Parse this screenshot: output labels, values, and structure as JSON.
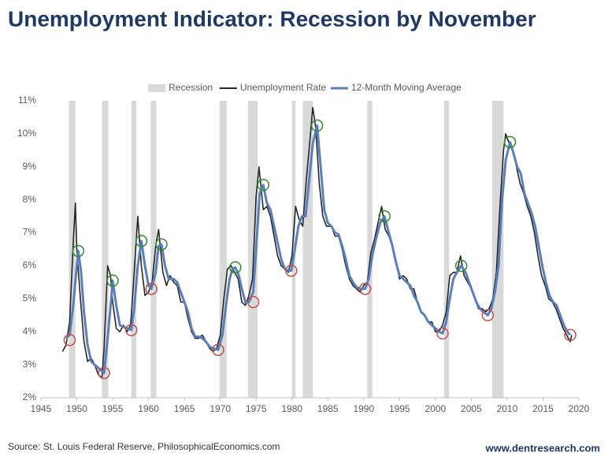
{
  "chart_data": {
    "type": "line",
    "title": "Unemployment Indicator: Recession by November",
    "source": "Source: St. Louis Federal Reserve, PhilosophicalEconomics.com",
    "credit": "www.dentresearch.com",
    "xlim": [
      1945,
      2020
    ],
    "xticks": [
      1945,
      1950,
      1955,
      1960,
      1965,
      1970,
      1975,
      1980,
      1985,
      1990,
      1995,
      2000,
      2005,
      2010,
      2015,
      2020
    ],
    "ylim": [
      2,
      11
    ],
    "yticks": [
      {
        "value": 2,
        "label": "2%"
      },
      {
        "value": 3,
        "label": "3%"
      },
      {
        "value": 4,
        "label": "4%"
      },
      {
        "value": 5,
        "label": "5%"
      },
      {
        "value": 6,
        "label": "6%"
      },
      {
        "value": 7,
        "label": "7%"
      },
      {
        "value": 8,
        "label": "8%"
      },
      {
        "value": 9,
        "label": "9%"
      },
      {
        "value": 10,
        "label": "10%"
      },
      {
        "value": 11,
        "label": "11%"
      }
    ],
    "legend": "top",
    "series": [
      {
        "name": "Recession",
        "color": "#d9d9d9",
        "periods": [
          [
            1948.9,
            1949.8
          ],
          [
            1953.5,
            1954.4
          ],
          [
            1957.6,
            1958.3
          ],
          [
            1960.3,
            1961.1
          ],
          [
            1969.9,
            1970.9
          ],
          [
            1973.9,
            1975.2
          ],
          [
            1980.0,
            1980.5
          ],
          [
            1981.5,
            1982.9
          ],
          [
            1990.5,
            1991.2
          ],
          [
            2001.2,
            2001.9
          ],
          [
            2007.9,
            2009.5
          ]
        ]
      },
      {
        "name": "Unemployment Rate",
        "color": "#262626",
        "x": [
          1948.0,
          1948.5,
          1949.0,
          1949.5,
          1949.8,
          1950.0,
          1950.5,
          1951.0,
          1951.5,
          1952.0,
          1952.5,
          1953.0,
          1953.5,
          1953.8,
          1954.3,
          1954.7,
          1955.0,
          1955.5,
          1956.0,
          1956.5,
          1957.0,
          1957.5,
          1958.0,
          1958.5,
          1959.0,
          1959.5,
          1960.0,
          1960.5,
          1961.0,
          1961.4,
          1962.0,
          1962.5,
          1963.0,
          1963.5,
          1964.0,
          1964.5,
          1965.0,
          1965.5,
          1966.0,
          1966.5,
          1967.0,
          1967.5,
          1968.0,
          1968.5,
          1969.0,
          1969.5,
          1970.0,
          1970.5,
          1971.0,
          1971.5,
          1972.0,
          1972.5,
          1973.0,
          1973.5,
          1974.0,
          1974.5,
          1975.0,
          1975.4,
          1976.0,
          1976.5,
          1977.0,
          1977.5,
          1978.0,
          1978.5,
          1979.0,
          1979.5,
          1980.0,
          1980.5,
          1981.0,
          1981.5,
          1982.0,
          1982.5,
          1982.9,
          1983.3,
          1983.8,
          1984.3,
          1984.8,
          1985.5,
          1986.0,
          1986.5,
          1987.0,
          1987.5,
          1988.0,
          1988.5,
          1989.0,
          1989.5,
          1990.0,
          1990.5,
          1991.0,
          1991.5,
          1992.0,
          1992.5,
          1993.0,
          1993.5,
          1994.0,
          1994.5,
          1995.0,
          1995.5,
          1996.0,
          1996.5,
          1997.0,
          1997.5,
          1998.0,
          1998.5,
          1999.0,
          1999.5,
          2000.0,
          2000.5,
          2001.0,
          2001.5,
          2002.0,
          2002.5,
          2003.0,
          2003.5,
          2004.0,
          2004.5,
          2005.0,
          2005.5,
          2006.0,
          2006.5,
          2007.0,
          2007.5,
          2008.0,
          2008.5,
          2009.0,
          2009.5,
          2009.8,
          2010.3,
          2010.8,
          2011.3,
          2011.8,
          2012.3,
          2012.8,
          2013.3,
          2013.8,
          2014.3,
          2014.8,
          2015.3,
          2015.8,
          2016.3,
          2016.8,
          2017.3,
          2017.8,
          2018.3,
          2018.8,
          2019.0
        ],
        "values": [
          3.4,
          3.6,
          4.3,
          6.7,
          7.9,
          6.5,
          5.0,
          3.7,
          3.1,
          3.2,
          3.0,
          2.7,
          2.6,
          3.5,
          6.0,
          5.7,
          4.9,
          4.1,
          4.0,
          4.2,
          4.0,
          4.2,
          5.8,
          7.5,
          6.0,
          5.1,
          5.2,
          5.5,
          6.6,
          7.1,
          5.8,
          5.4,
          5.7,
          5.5,
          5.4,
          4.9,
          4.9,
          4.4,
          4.0,
          3.8,
          3.8,
          3.9,
          3.7,
          3.5,
          3.4,
          3.5,
          3.9,
          5.0,
          5.9,
          6.0,
          5.8,
          5.6,
          4.9,
          4.8,
          5.1,
          5.6,
          8.1,
          9.0,
          7.7,
          7.8,
          7.5,
          6.9,
          6.3,
          6.0,
          5.9,
          5.8,
          6.3,
          7.8,
          7.4,
          7.2,
          8.6,
          9.8,
          10.8,
          10.2,
          8.5,
          7.5,
          7.2,
          7.2,
          6.9,
          6.9,
          6.5,
          6.0,
          5.6,
          5.4,
          5.3,
          5.2,
          5.4,
          5.5,
          6.4,
          6.8,
          7.3,
          7.8,
          7.1,
          6.9,
          6.6,
          6.1,
          5.6,
          5.7,
          5.6,
          5.3,
          5.3,
          4.9,
          4.6,
          4.5,
          4.3,
          4.3,
          4.0,
          4.0,
          4.2,
          4.6,
          5.7,
          5.8,
          5.8,
          6.3,
          5.7,
          5.5,
          5.3,
          5.0,
          4.7,
          4.7,
          4.6,
          4.7,
          5.0,
          5.8,
          7.8,
          9.5,
          10.0,
          9.7,
          9.5,
          9.0,
          8.5,
          8.2,
          7.8,
          7.5,
          7.0,
          6.3,
          5.7,
          5.4,
          5.0,
          4.9,
          4.7,
          4.4,
          4.1,
          3.9,
          3.7,
          3.9
        ]
      },
      {
        "name": "12-Month Moving Average",
        "color": "#5b7fb8",
        "x": [
          1948.5,
          1949.0,
          1949.5,
          1950.0,
          1950.2,
          1950.6,
          1951.0,
          1951.5,
          1952.0,
          1952.5,
          1953.0,
          1953.8,
          1954.3,
          1954.8,
          1955.0,
          1955.5,
          1956.0,
          1956.5,
          1957.0,
          1957.6,
          1958.0,
          1958.5,
          1959.0,
          1959.5,
          1960.0,
          1960.4,
          1961.0,
          1961.4,
          1961.8,
          1962.3,
          1962.8,
          1963.5,
          1964.0,
          1964.5,
          1965.0,
          1965.5,
          1966.0,
          1966.5,
          1967.0,
          1967.5,
          1968.0,
          1968.5,
          1969.0,
          1969.7,
          1970.3,
          1970.8,
          1971.3,
          1971.7,
          1972.1,
          1972.6,
          1973.0,
          1973.5,
          1974.0,
          1974.6,
          1975.0,
          1975.5,
          1976.0,
          1976.5,
          1977.0,
          1977.5,
          1978.0,
          1978.5,
          1979.0,
          1979.5,
          1979.9,
          1980.4,
          1980.9,
          1981.4,
          1981.9,
          1982.4,
          1982.9,
          1983.5,
          1984.0,
          1984.5,
          1985.0,
          1985.5,
          1986.0,
          1986.5,
          1987.0,
          1987.5,
          1988.0,
          1988.5,
          1989.0,
          1989.5,
          1990.2,
          1990.7,
          1991.2,
          1991.7,
          1992.3,
          1992.9,
          1993.5,
          1994.0,
          1994.5,
          1995.0,
          1995.5,
          1996.0,
          1996.5,
          1997.0,
          1997.5,
          1998.0,
          1998.5,
          1999.0,
          1999.5,
          2000.0,
          2000.5,
          2001.0,
          2001.5,
          2002.0,
          2002.5,
          2003.0,
          2003.6,
          2004.2,
          2004.7,
          2005.2,
          2005.7,
          2006.2,
          2006.7,
          2007.3,
          2007.8,
          2008.3,
          2008.8,
          2009.3,
          2009.8,
          2010.4,
          2010.9,
          2011.4,
          2011.9,
          2012.4,
          2012.9,
          2013.4,
          2013.9,
          2014.4,
          2014.9,
          2015.4,
          2015.9,
          2016.4,
          2016.9,
          2017.4,
          2017.9,
          2018.4,
          2018.8
        ],
        "values": [
          3.8,
          3.9,
          4.8,
          6.0,
          6.45,
          5.8,
          4.6,
          3.6,
          3.1,
          3.0,
          2.9,
          2.75,
          3.8,
          5.0,
          5.55,
          4.8,
          4.2,
          4.15,
          4.1,
          4.05,
          4.7,
          6.0,
          6.75,
          6.0,
          5.4,
          5.3,
          5.8,
          6.6,
          6.65,
          6.0,
          5.6,
          5.6,
          5.5,
          5.2,
          4.9,
          4.6,
          4.1,
          3.85,
          3.85,
          3.8,
          3.7,
          3.55,
          3.5,
          3.45,
          3.9,
          4.8,
          5.6,
          5.9,
          5.95,
          5.7,
          5.3,
          4.9,
          4.9,
          5.2,
          6.5,
          8.2,
          8.45,
          7.9,
          7.7,
          7.2,
          6.7,
          6.2,
          5.9,
          5.85,
          5.85,
          6.5,
          7.2,
          7.5,
          7.5,
          8.6,
          9.7,
          10.25,
          9.0,
          7.7,
          7.3,
          7.2,
          7.0,
          6.95,
          6.6,
          6.2,
          5.7,
          5.5,
          5.35,
          5.3,
          5.3,
          5.6,
          6.3,
          6.8,
          7.3,
          7.5,
          7.0,
          6.6,
          6.1,
          5.7,
          5.6,
          5.5,
          5.4,
          5.1,
          4.9,
          4.6,
          4.5,
          4.3,
          4.2,
          4.1,
          4.0,
          3.95,
          4.3,
          5.0,
          5.6,
          5.8,
          6.0,
          5.8,
          5.5,
          5.2,
          4.9,
          4.7,
          4.6,
          4.5,
          4.7,
          5.2,
          6.0,
          8.0,
          9.2,
          9.75,
          9.4,
          9.0,
          8.8,
          8.2,
          7.9,
          7.6,
          7.2,
          6.6,
          6.0,
          5.5,
          5.1,
          4.9,
          4.8,
          4.5,
          4.2,
          4.0,
          3.9
        ]
      }
    ],
    "markers": [
      {
        "color": "#2e8b2e",
        "x": [
          1950.2,
          1955.0,
          1959.0,
          1961.8,
          1972.1,
          1976.0,
          1983.5,
          1992.9,
          2003.6,
          2010.4
        ],
        "values": [
          6.45,
          5.55,
          6.75,
          6.65,
          5.95,
          8.45,
          10.25,
          7.5,
          6.0,
          9.75
        ]
      },
      {
        "color": "#c0504d",
        "x": [
          1949.0,
          1953.8,
          1957.6,
          1960.4,
          1969.7,
          1974.6,
          1979.9,
          1990.2,
          2001.0,
          2007.3,
          2018.8
        ],
        "values": [
          3.75,
          2.75,
          4.05,
          5.3,
          3.45,
          4.9,
          5.85,
          5.3,
          3.95,
          4.5,
          3.9
        ]
      }
    ]
  }
}
